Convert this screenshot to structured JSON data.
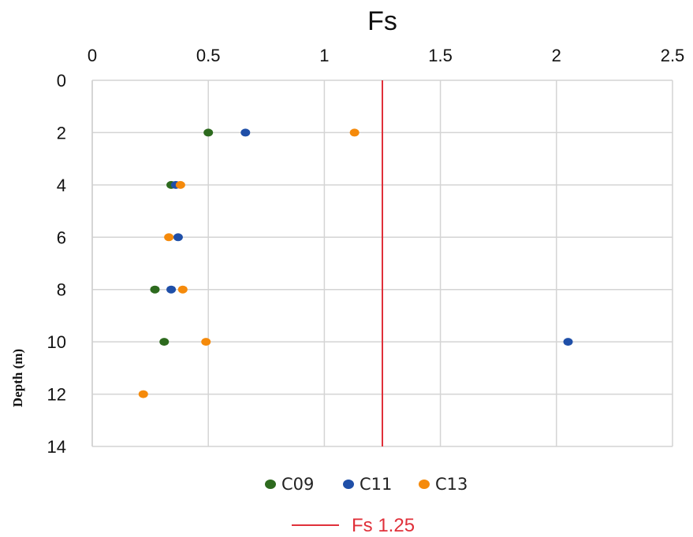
{
  "chart_data": {
    "type": "scatter",
    "title": "Fs",
    "ylabel": "Depth (m)",
    "xlabel": "",
    "x_ticks": [
      "0",
      "0.5",
      "1",
      "1.5",
      "2",
      "2.5"
    ],
    "y_ticks": [
      "0",
      "2",
      "4",
      "6",
      "8",
      "10",
      "12",
      "14"
    ],
    "xlim": [
      0,
      2.5
    ],
    "ylim": [
      0,
      14
    ],
    "y_inverted": true,
    "x_axis_position": "top",
    "grid": true,
    "legend_placement": "bottom-center",
    "series": [
      {
        "name": "C09",
        "color": "#2d6a1e",
        "points": [
          {
            "x": 0.5,
            "y": 2
          },
          {
            "x": 0.34,
            "y": 4
          },
          {
            "x": 0.27,
            "y": 8
          },
          {
            "x": 0.31,
            "y": 10
          }
        ]
      },
      {
        "name": "C11",
        "color": "#1f4fa8",
        "points": [
          {
            "x": 0.66,
            "y": 2
          },
          {
            "x": 0.36,
            "y": 4
          },
          {
            "x": 0.37,
            "y": 6
          },
          {
            "x": 0.34,
            "y": 8
          },
          {
            "x": 2.05,
            "y": 10
          }
        ]
      },
      {
        "name": "C13",
        "color": "#f58a0b",
        "points": [
          {
            "x": 1.13,
            "y": 2
          },
          {
            "x": 0.38,
            "y": 4
          },
          {
            "x": 0.33,
            "y": 6
          },
          {
            "x": 0.39,
            "y": 8
          },
          {
            "x": 0.49,
            "y": 10
          },
          {
            "x": 0.22,
            "y": 12
          }
        ]
      }
    ],
    "reference_line": {
      "name": "Fs 1.25",
      "x": 1.25,
      "color": "#e0303a"
    }
  }
}
